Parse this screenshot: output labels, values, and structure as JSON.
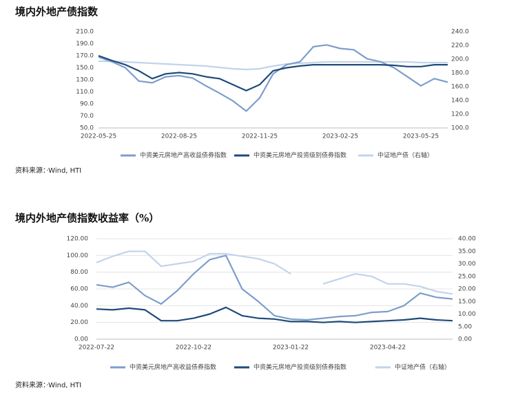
{
  "chart_data": [
    {
      "type": "line",
      "title": "境内外地产债指数",
      "source": "资料来源：·Wind, HTI",
      "categories": [
        "2022-05-25",
        null,
        null,
        null,
        null,
        null,
        "2022-08-25",
        null,
        null,
        null,
        null,
        null,
        "2022-11-25",
        null,
        null,
        null,
        null,
        null,
        "2023-02-25",
        null,
        null,
        null,
        null,
        null,
        "2023-05-25",
        null,
        null
      ],
      "ylim": [
        50,
        210
      ],
      "yticks": [
        {
          "value": 50,
          "label": "50.0"
        },
        {
          "value": 70,
          "label": "70.0"
        },
        {
          "value": 90,
          "label": "90.0"
        },
        {
          "value": 110,
          "label": "110.0"
        },
        {
          "value": 130,
          "label": "130.0"
        },
        {
          "value": 150,
          "label": "150.0"
        },
        {
          "value": 170,
          "label": "170.0"
        },
        {
          "value": 190,
          "label": "190.0"
        },
        {
          "value": 210,
          "label": "210.0"
        }
      ],
      "y2lim": [
        100,
        240
      ],
      "y2ticks": [
        {
          "value": 100,
          "label": "100.0"
        },
        {
          "value": 120,
          "label": "120.0"
        },
        {
          "value": 140,
          "label": "140.0"
        },
        {
          "value": 160,
          "label": "160.0"
        },
        {
          "value": 180,
          "label": "180.0"
        },
        {
          "value": 200,
          "label": "200.0"
        },
        {
          "value": 220,
          "label": "220.0"
        },
        {
          "value": 240,
          "label": "240.0"
        }
      ],
      "grid": false,
      "series": [
        {
          "name": "中资美元房地产高收益债券指数",
          "color": "#7c9dcb",
          "values": [
            168,
            160,
            150,
            128,
            125,
            135,
            137,
            133,
            120,
            108,
            95,
            78,
            100,
            140,
            155,
            160,
            185,
            188,
            182,
            180,
            165,
            160,
            150,
            135,
            120,
            132,
            126
          ]
        },
        {
          "name": "中资美元房地产投资级别债券指数",
          "color": "#1e4a7a",
          "values": [
            170,
            162,
            155,
            145,
            132,
            140,
            142,
            140,
            135,
            132,
            122,
            112,
            122,
            145,
            150,
            153,
            155,
            155,
            155,
            155,
            155,
            155,
            154,
            152,
            152,
            155,
            155
          ]
        },
        {
          "name": "中证地产债（右轴）",
          "color": "#c2d3ea",
          "axis": "y2",
          "values": [
            197,
            197,
            196,
            195,
            194,
            193,
            192,
            191,
            190,
            188,
            186,
            185,
            186,
            190,
            193,
            194,
            195,
            196,
            196,
            196,
            196,
            196,
            196,
            196,
            195,
            195,
            195
          ]
        }
      ]
    },
    {
      "type": "line",
      "title": "境内外地产债指数收益率（%）",
      "source": "资料来源：·Wind, HTI",
      "categories": [
        "2022-07-22",
        null,
        null,
        null,
        null,
        null,
        "2022-10-22",
        null,
        null,
        null,
        null,
        null,
        "2023-01-22",
        null,
        null,
        null,
        null,
        null,
        "2023-04-22",
        null,
        null,
        null,
        null
      ],
      "ylim": [
        0,
        120
      ],
      "yticks": [
        {
          "value": 0,
          "label": "0.00"
        },
        {
          "value": 20,
          "label": "20.00"
        },
        {
          "value": 40,
          "label": "40.00"
        },
        {
          "value": 60,
          "label": "60.00"
        },
        {
          "value": 80,
          "label": "80.00"
        },
        {
          "value": 100,
          "label": "100.00"
        },
        {
          "value": 120,
          "label": "120.00"
        }
      ],
      "y2lim": [
        0,
        40
      ],
      "y2ticks": [
        {
          "value": 0,
          "label": "0.00"
        },
        {
          "value": 5,
          "label": "5.00"
        },
        {
          "value": 10,
          "label": "10.00"
        },
        {
          "value": 15,
          "label": "15.00"
        },
        {
          "value": 20,
          "label": "20.00"
        },
        {
          "value": 25,
          "label": "25.00"
        },
        {
          "value": 30,
          "label": "30.00"
        },
        {
          "value": 35,
          "label": "35.00"
        },
        {
          "value": 40,
          "label": "40.00"
        }
      ],
      "grid": true,
      "series": [
        {
          "name": "中资美元房地产高收益债券指数",
          "color": "#7c9dcb",
          "values": [
            65,
            62,
            68,
            52,
            42,
            58,
            78,
            95,
            100,
            60,
            45,
            28,
            24,
            23,
            25,
            27,
            28,
            32,
            33,
            40,
            55,
            50,
            48
          ]
        },
        {
          "name": "中资美元房地产投资级别债券指数",
          "color": "#1e4a7a",
          "values": [
            36,
            35,
            37,
            35,
            22,
            22,
            25,
            30,
            38,
            28,
            25,
            24,
            21,
            21,
            20,
            21,
            20,
            21,
            22,
            23,
            25,
            23,
            22
          ]
        },
        {
          "name": "中证地产债（右轴）",
          "color": "#c2d3ea",
          "axis": "y2",
          "values": [
            30.5,
            33,
            35,
            35,
            29,
            30,
            31,
            34,
            34,
            33,
            32,
            30,
            26,
            null,
            22,
            24,
            26,
            25,
            22,
            22,
            21,
            19,
            18
          ]
        }
      ]
    }
  ]
}
